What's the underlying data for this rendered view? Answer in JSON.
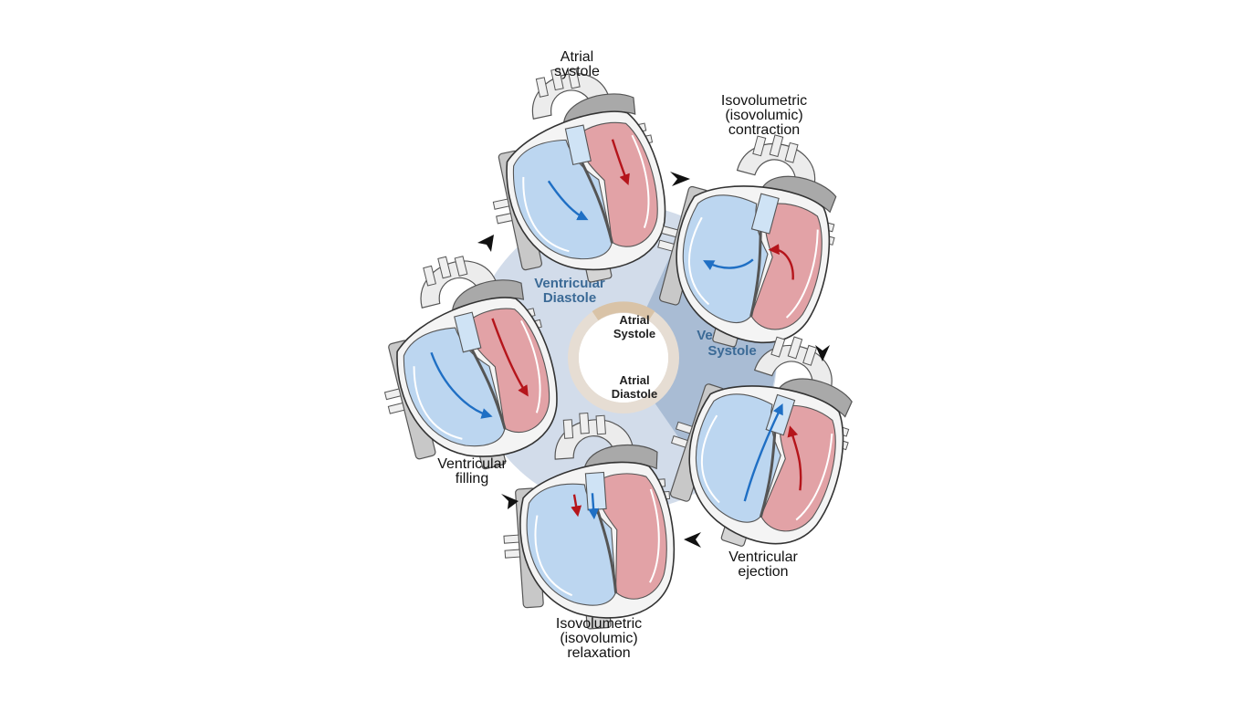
{
  "phases": {
    "diastole": [
      "Ventricular",
      "Diastole"
    ],
    "systole": [
      "Ventricular",
      "Systole"
    ]
  },
  "ring": {
    "atrial_systole": [
      "Atrial",
      "Systole"
    ],
    "atrial_diastole": [
      "Atrial",
      "Diastole"
    ]
  },
  "stages": {
    "atrial_systole": [
      "Atrial",
      "systole"
    ],
    "isovolumetric_contraction": [
      "Isovolumetric",
      "(isovolumic)",
      "contraction"
    ],
    "ventricular_ejection": [
      "Ventricular",
      "ejection"
    ],
    "isovolumetric_relaxation": [
      "Isovolumetric",
      "(isovolumic)",
      "relaxation"
    ],
    "ventricular_filling": [
      "Ventricular",
      "filling"
    ]
  },
  "colors": {
    "diastole_fill": "#d2dcea",
    "systole_fill": "#a9bcd4",
    "ring_outer": "#e6ddd3",
    "ring_accent": "#d9c3a7",
    "oxygenated": "#e2a2a6",
    "deoxygenated": "#bcd6f0",
    "vessel": "#c8c8c8",
    "blue_arrow": "#1f6fc4",
    "red_arrow": "#b5151b"
  }
}
